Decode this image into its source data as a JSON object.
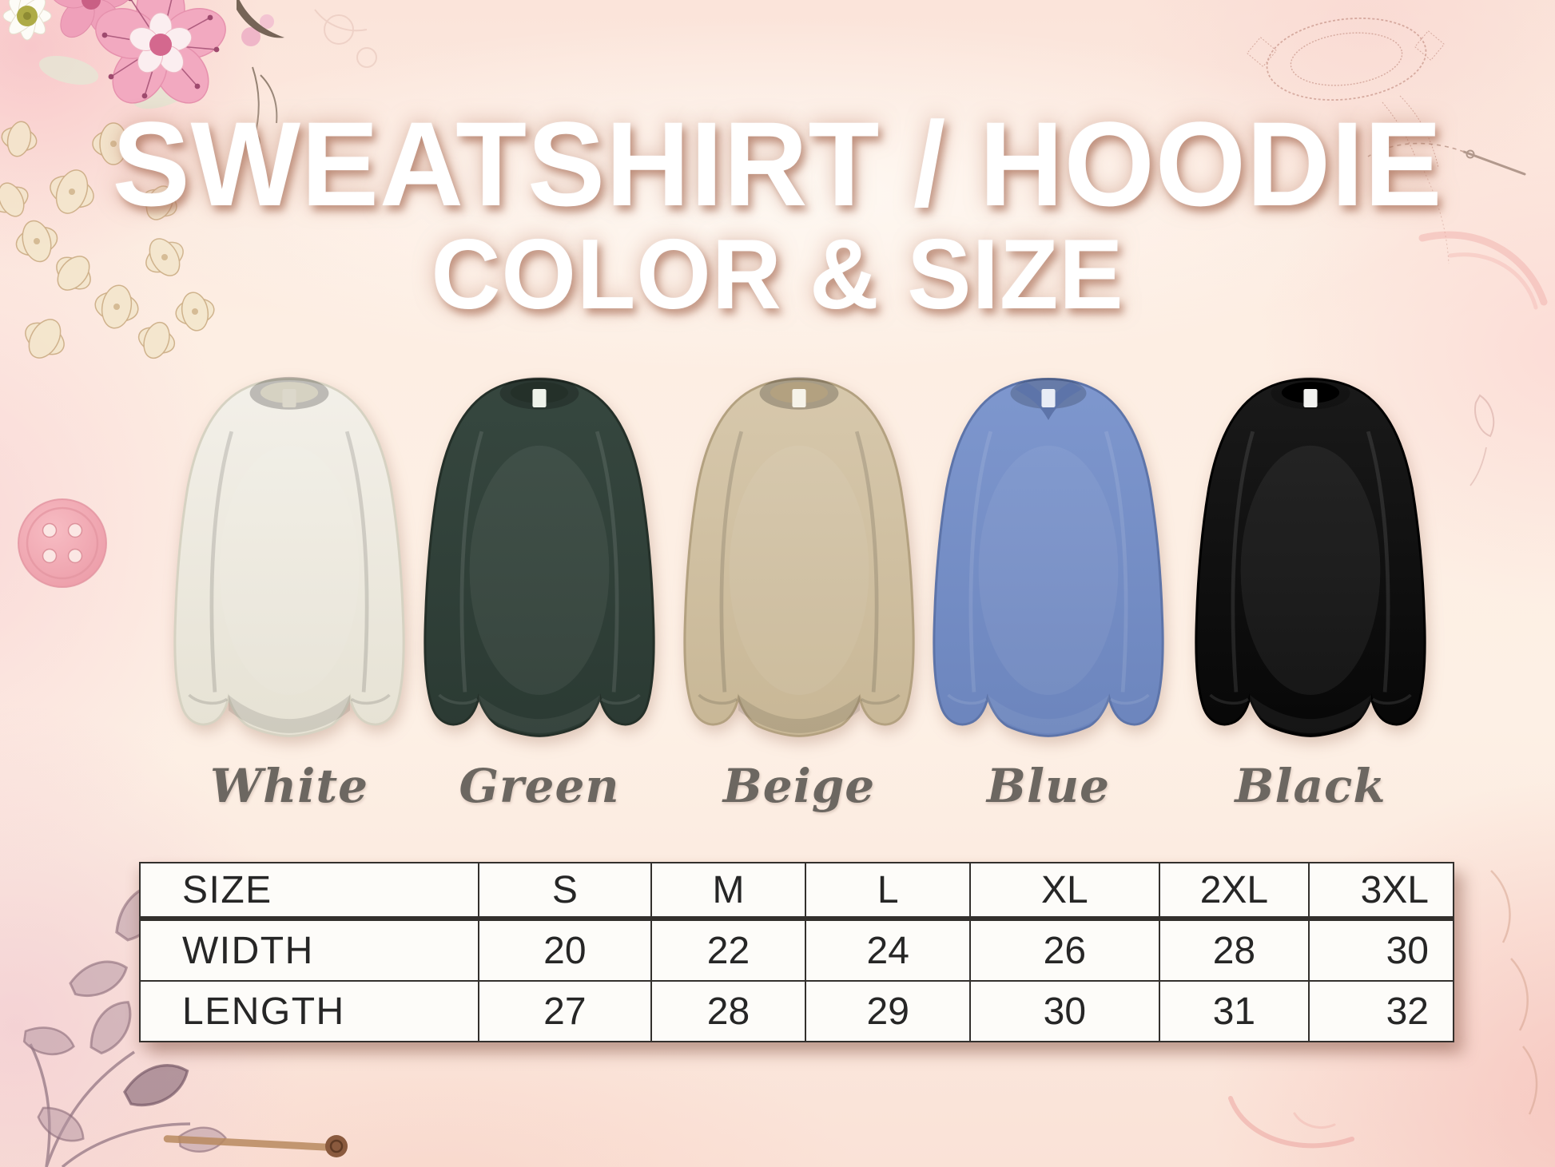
{
  "title": {
    "line1": "SWEATSHIRT / HOODIE",
    "line2": "COLOR & SIZE"
  },
  "products": {
    "items": [
      {
        "name": "White",
        "color": "#f3f0e9",
        "shade": "#e6e2d4",
        "trim": "#d6d2c2",
        "tag": "#dcd8cb",
        "neck": "crew",
        "dark": false
      },
      {
        "name": "Green",
        "color": "#36473f",
        "shade": "#2b3a33",
        "trim": "#243029",
        "tag": "#eef2ea",
        "neck": "crew",
        "dark": true
      },
      {
        "name": "Beige",
        "color": "#d7c8ac",
        "shade": "#c8b796",
        "trim": "#b3a180",
        "tag": "#f6f3e9",
        "neck": "crew",
        "dark": false
      },
      {
        "name": "Blue",
        "color": "#7e97ce",
        "shade": "#6c85bd",
        "trim": "#5d74a9",
        "tag": "#e8ecf5",
        "neck": "v",
        "dark": true
      },
      {
        "name": "Black",
        "color": "#1a1a1a",
        "shade": "#070707",
        "trim": "#000000",
        "tag": "#f2f2f0",
        "neck": "crew",
        "dark": true
      }
    ]
  },
  "size_table": {
    "header": [
      "SIZE",
      "S",
      "M",
      "L",
      "XL",
      "2XL",
      "3XL"
    ],
    "rows": [
      {
        "label": "WIDTH",
        "values": [
          "20",
          "22",
          "24",
          "26",
          "28",
          "30"
        ]
      },
      {
        "label": "LENGTH",
        "values": [
          "27",
          "28",
          "29",
          "30",
          "31",
          "32"
        ]
      }
    ]
  },
  "chart_data": {
    "type": "table",
    "title": "Sweatshirt / Hoodie size chart (inches)",
    "columns": [
      "SIZE",
      "S",
      "M",
      "L",
      "XL",
      "2XL",
      "3XL"
    ],
    "rows": [
      [
        "WIDTH",
        20,
        22,
        24,
        26,
        28,
        30
      ],
      [
        "LENGTH",
        27,
        28,
        29,
        30,
        31,
        32
      ]
    ]
  },
  "palette": {
    "background_peach": "#fdeee3",
    "border_pink_wash": "#f5c0c6",
    "title_color": "#ffffff",
    "title_shadow": "#a46850",
    "label_gray": "#6c6761",
    "table_text": "#262626",
    "table_background": "#fdfcf9",
    "button_pink": "#f2a9b3",
    "lace_brown": "#b97f72"
  },
  "decor": {
    "top_left": "watercolor-flower-cluster",
    "top_right": "lace-doily-and-needle",
    "left": "sewing-button",
    "bottom_left": "leaf-branch",
    "bottom": "wooden-twig",
    "bottom_right": "rose-swirl"
  }
}
